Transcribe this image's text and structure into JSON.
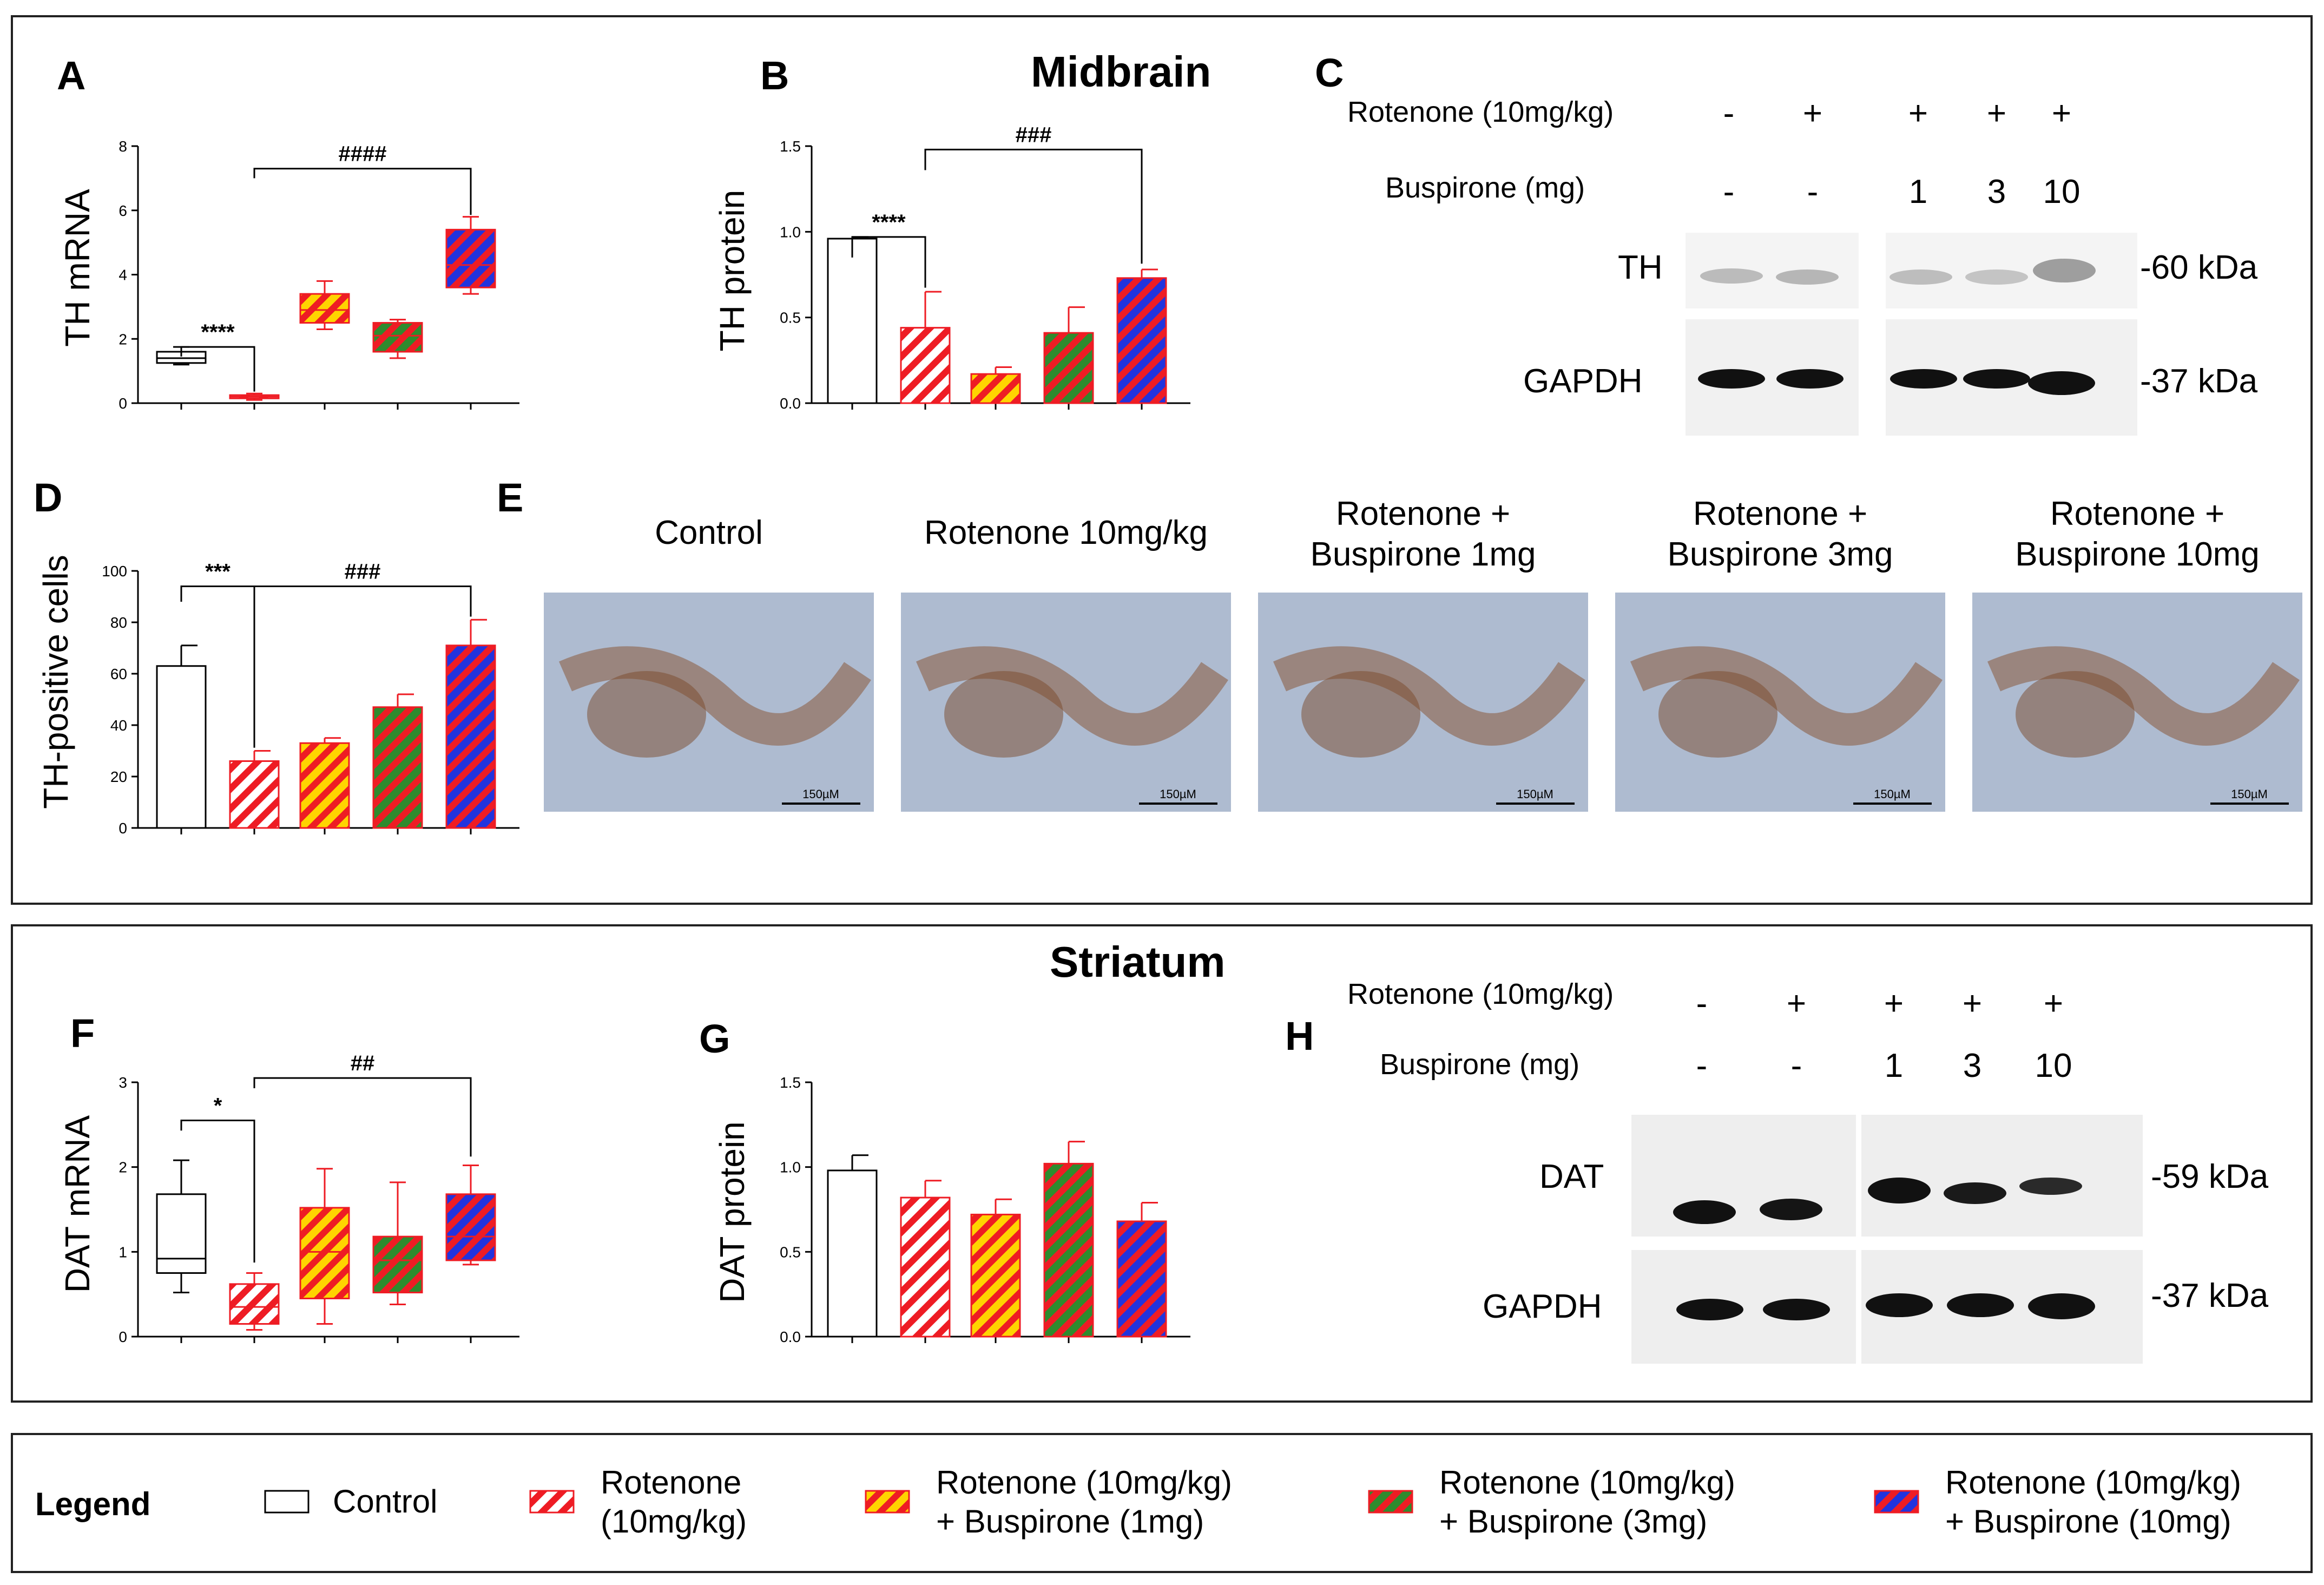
{
  "headings": {
    "midbrain": "Midbrain",
    "striatum": "Striatum"
  },
  "panel_letters": [
    "A",
    "B",
    "C",
    "D",
    "E",
    "F",
    "G",
    "H"
  ],
  "groups": [
    "Control",
    "Rotenone (10mg/kg)",
    "Rotenone (10mg/kg) + Buspirone (1mg)",
    "Rotenone (10mg/kg) + Buspirone (3mg)",
    "Rotenone (10mg/kg) + Buspirone (10mg)"
  ],
  "group_styles": [
    {
      "fill": "#ffffff",
      "stripe": null,
      "edge": "#000000"
    },
    {
      "fill": "#ffffff",
      "stripe": "#ee1c24",
      "edge": "#ee1c24"
    },
    {
      "fill": "#ffd400",
      "stripe": "#ee1c24",
      "edge": "#ee1c24"
    },
    {
      "fill": "#2e8b2e",
      "stripe": "#ee1c24",
      "edge": "#ee1c24"
    },
    {
      "fill": "#2233dd",
      "stripe": "#ee1c24",
      "edge": "#ee1c24"
    }
  ],
  "chart_data": [
    {
      "id": "A",
      "type": "box",
      "ylabel": "TH mRNA",
      "ylim": [
        0,
        8
      ],
      "yticks": [
        "0",
        "2",
        "4",
        "6",
        "8"
      ],
      "boxes": [
        {
          "min": 1.2,
          "q1": 1.25,
          "median": 1.4,
          "q3": 1.6,
          "max": 1.75
        },
        {
          "min": 0.1,
          "q1": 0.15,
          "median": 0.2,
          "q3": 0.25,
          "max": 0.3
        },
        {
          "min": 2.3,
          "q1": 2.5,
          "median": 2.9,
          "q3": 3.4,
          "max": 3.8
        },
        {
          "min": 1.4,
          "q1": 1.6,
          "median": 2.1,
          "q3": 2.5,
          "max": 2.6
        },
        {
          "min": 3.4,
          "q1": 3.6,
          "median": 4.3,
          "q3": 5.4,
          "max": 5.8
        }
      ],
      "annotations": [
        {
          "label": "****",
          "from": 0,
          "to": 1,
          "y": 1.75,
          "end_to": 0.3,
          "lift": 0.3
        },
        {
          "label": "####",
          "from": 1,
          "to": 4,
          "y": 7.3,
          "end_to": 5.8,
          "lift": 0.3
        }
      ]
    },
    {
      "id": "B",
      "type": "bar",
      "ylabel": "TH protein",
      "ylim": [
        0,
        1.5
      ],
      "yticks": [
        "0.0",
        "0.5",
        "1.0",
        "1.5"
      ],
      "values": [
        0.96,
        0.44,
        0.17,
        0.41,
        0.73
      ],
      "errors": [
        0.01,
        0.21,
        0.04,
        0.15,
        0.05
      ],
      "annotations": [
        {
          "label": "****",
          "from": 0,
          "to": 1,
          "y": 0.97,
          "end_to": 0.65,
          "lift": 0.12
        },
        {
          "label": "###",
          "from": 1,
          "to": 4,
          "y": 1.48,
          "end_to": 0.79,
          "lift": 0.12
        }
      ]
    },
    {
      "id": "D",
      "type": "bar",
      "ylabel": "TH-positive cells",
      "ylim": [
        0,
        100
      ],
      "yticks": [
        "0",
        "20",
        "40",
        "60",
        "80",
        "100"
      ],
      "values": [
        63,
        26,
        33,
        47,
        71
      ],
      "errors": [
        8,
        4,
        2,
        5,
        10
      ],
      "annotations": [
        {
          "label": "***",
          "from": 0,
          "to": 1,
          "y": 94,
          "end_to": 30,
          "lift": 6
        },
        {
          "label": "###",
          "from": 1,
          "to": 4,
          "y": 94,
          "end_to": 81,
          "lift": 6
        }
      ]
    },
    {
      "id": "F",
      "type": "box",
      "ylabel": "DAT mRNA",
      "ylim": [
        0,
        3
      ],
      "yticks": [
        "0",
        "1",
        "2",
        "3"
      ],
      "boxes": [
        {
          "min": 0.52,
          "q1": 0.75,
          "median": 0.92,
          "q3": 1.68,
          "max": 2.08
        },
        {
          "min": 0.08,
          "q1": 0.15,
          "median": 0.35,
          "q3": 0.62,
          "max": 0.75
        },
        {
          "min": 0.15,
          "q1": 0.45,
          "median": 1.0,
          "q3": 1.52,
          "max": 1.98
        },
        {
          "min": 0.38,
          "q1": 0.52,
          "median": 0.9,
          "q3": 1.18,
          "max": 1.82
        },
        {
          "min": 0.85,
          "q1": 0.9,
          "median": 1.18,
          "q3": 1.68,
          "max": 2.02
        }
      ],
      "annotations": [
        {
          "label": "*",
          "from": 0,
          "to": 1,
          "y": 2.55,
          "end_to": 0.85,
          "lift": 0.12
        },
        {
          "label": "##",
          "from": 1,
          "to": 4,
          "y": 3.05,
          "end_to": 2.1,
          "lift": 0.12
        }
      ]
    },
    {
      "id": "G",
      "type": "bar",
      "ylabel": "DAT protein",
      "ylim": [
        0,
        1.5
      ],
      "yticks": [
        "0.0",
        "0.5",
        "1.0",
        "1.5"
      ],
      "values": [
        0.98,
        0.82,
        0.72,
        1.02,
        0.68
      ],
      "errors": [
        0.09,
        0.1,
        0.09,
        0.13,
        0.11
      ],
      "annotations": []
    }
  ],
  "blot_c": {
    "rotenone_label": "Rotenone (10mg/kg)",
    "buspirone_label": "Buspirone (mg)",
    "rotenone": [
      "-",
      "+",
      "+",
      "+",
      "+"
    ],
    "buspirone": [
      "-",
      "-",
      "1",
      "3",
      "10"
    ],
    "band1": "TH",
    "band2": "GAPDH",
    "kda1": "-60 kDa",
    "kda2": "-37 kDa"
  },
  "blot_h": {
    "rotenone_label": "Rotenone (10mg/kg)",
    "buspirone_label": "Buspirone (mg)",
    "rotenone": [
      "-",
      "+",
      "+",
      "+",
      "+"
    ],
    "buspirone": [
      "-",
      "-",
      "1",
      "3",
      "10"
    ],
    "band1": "DAT",
    "band2": "GAPDH",
    "kda1": "-59 kDa",
    "kda2": "-37 kDa"
  },
  "histology": {
    "labels": [
      [
        "Control",
        ""
      ],
      [
        "Rotenone 10mg/kg",
        ""
      ],
      [
        "Rotenone +",
        "Buspirone 1mg"
      ],
      [
        "Rotenone +",
        "Buspirone 3mg"
      ],
      [
        "Rotenone +",
        "Buspirone 10mg"
      ]
    ],
    "scale_bar": "150µM"
  },
  "legend": {
    "title": "Legend",
    "items": [
      [
        "Control",
        ""
      ],
      [
        "Rotenone",
        "(10mg/kg)"
      ],
      [
        "Rotenone (10mg/kg)",
        "+ Buspirone (1mg)"
      ],
      [
        "Rotenone (10mg/kg)",
        "+ Buspirone (3mg)"
      ],
      [
        "Rotenone (10mg/kg)",
        "+ Buspirone (10mg)"
      ]
    ]
  }
}
